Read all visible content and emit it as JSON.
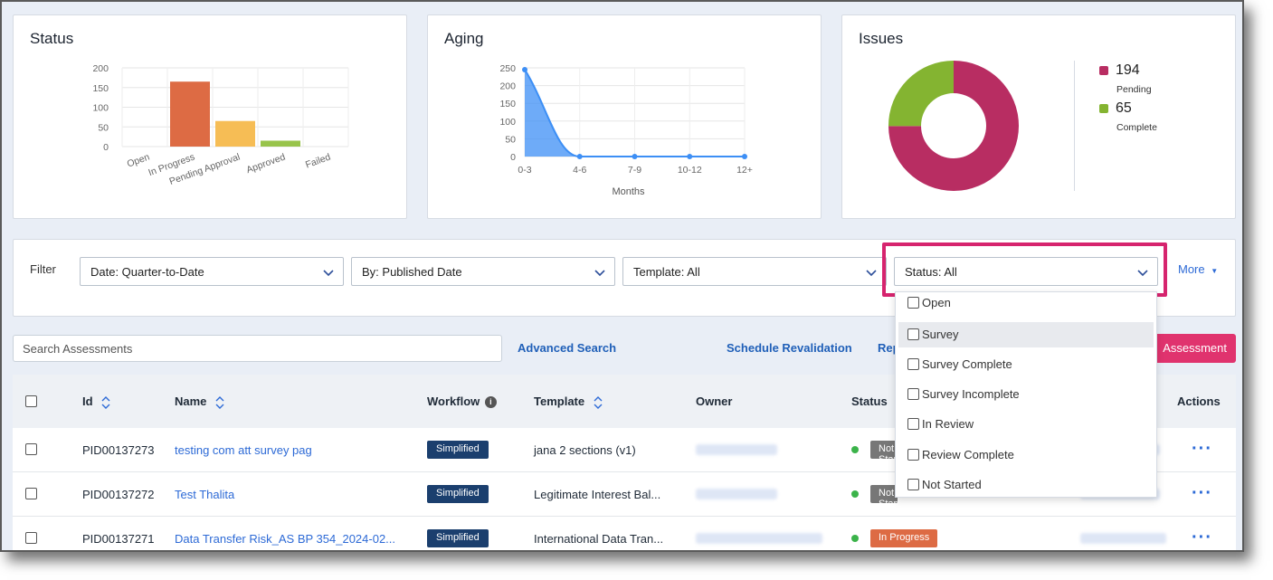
{
  "cards": {
    "status": {
      "title": "Status"
    },
    "aging": {
      "title": "Aging"
    },
    "issues": {
      "title": "Issues"
    }
  },
  "chart_data": [
    {
      "type": "bar",
      "title": "Status",
      "categories": [
        "Open",
        "In Progress",
        "Pending Approval",
        "Approved",
        "Failed"
      ],
      "values": [
        0,
        165,
        65,
        15,
        0
      ],
      "colors": [
        "#dd6b44",
        "#dd6b44",
        "#f6bd55",
        "#98c44b",
        "#999999"
      ],
      "yticks": [
        0,
        50,
        100,
        150,
        200
      ],
      "ylim": [
        0,
        200
      ]
    },
    {
      "type": "area",
      "title": "Aging",
      "categories": [
        "0-3",
        "4-6",
        "7-9",
        "10-12",
        "12+"
      ],
      "values": [
        245,
        0,
        0,
        0,
        0
      ],
      "xlabel": "Months",
      "yticks": [
        0,
        50,
        100,
        150,
        200,
        250
      ],
      "ylim": [
        0,
        250
      ],
      "color": "#3d8ff5"
    },
    {
      "type": "pie",
      "title": "Issues",
      "slices": [
        {
          "label": "Pending",
          "value": 194,
          "color": "#b82d62"
        },
        {
          "label": "Complete",
          "value": 65,
          "color": "#84b431"
        }
      ]
    }
  ],
  "filter": {
    "label": "Filter",
    "date": "Date: Quarter-to-Date",
    "by": "By: Published Date",
    "template": "Template: All",
    "status": "Status: All",
    "more": "More"
  },
  "status_options": [
    "Open",
    "Survey",
    "Survey Complete",
    "Survey Incomplete",
    "In Review",
    "Review Complete",
    "Not Started"
  ],
  "toolbar": {
    "search_placeholder": "Search Assessments",
    "advanced_search": "Advanced Search",
    "schedule_revalidation": "Schedule Revalidation",
    "rep": "Rep",
    "new_assessment": "Assessment"
  },
  "table": {
    "headers": {
      "id": "Id",
      "name": "Name",
      "workflow": "Workflow",
      "template": "Template",
      "owner": "Owner",
      "status": "Status",
      "actions": "Actions"
    },
    "rows": [
      {
        "id": "PID00137273",
        "name": "testing com att survey pag",
        "workflow": "Simplified",
        "template": "jana 2 sections (v1)",
        "status": "Not Started",
        "status_color": "#777777"
      },
      {
        "id": "PID00137272",
        "name": "Test Thalita",
        "workflow": "Simplified",
        "template": "Legitimate Interest Bal...",
        "status": "Not Started",
        "status_color": "#777777"
      },
      {
        "id": "PID00137271",
        "name": "Data Transfer Risk_AS BP 354_2024-02...",
        "workflow": "Simplified",
        "template": "International Data Tran...",
        "status": "In Progress",
        "status_color": "#dd6b44"
      }
    ]
  }
}
